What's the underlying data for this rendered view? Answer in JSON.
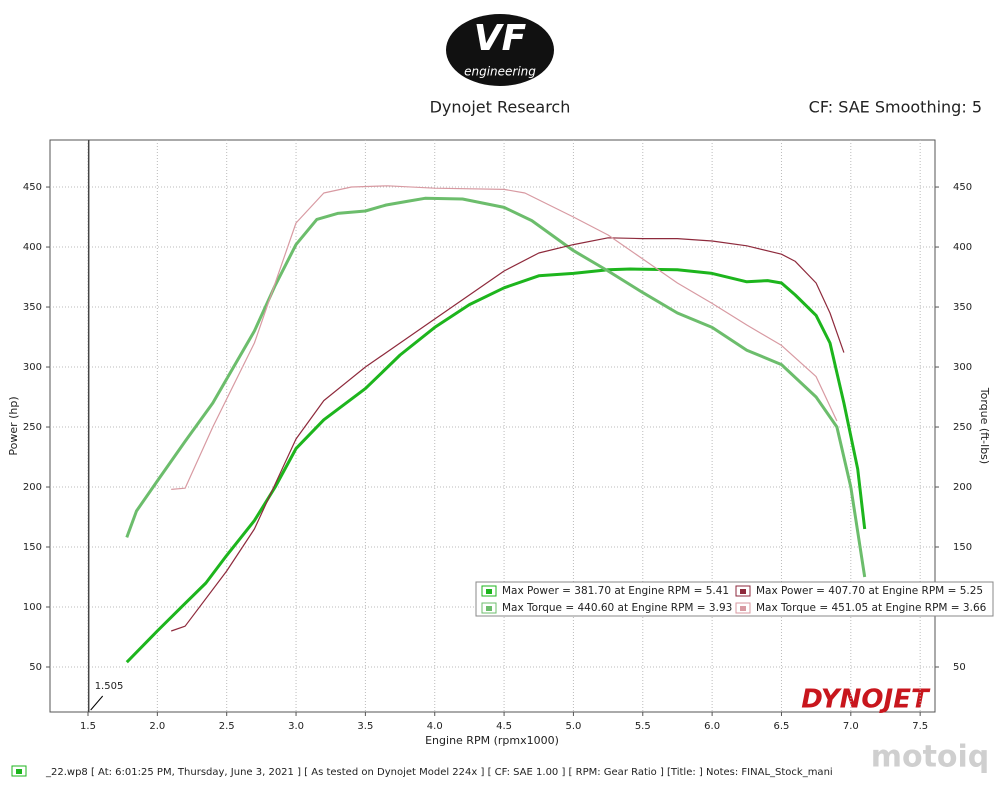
{
  "page": {
    "logo": "VF",
    "logo_sub": "engineering",
    "brand": "DYNOJET",
    "watermark": "motoiq",
    "footer": "_22.wp8 [ At: 6:01:25 PM, Thursday, June 3, 2021 ] [ As tested on Dynojet Model 224x ] [ CF: SAE 1.00 ] [ RPM: Gear Ratio ] [Title: ]  Notes: FINAL_Stock_mani"
  },
  "chart_data": {
    "type": "line",
    "title": "Dynojet Research",
    "subtitle": "CF: SAE Smoothing: 5",
    "x_label": "Engine RPM (rpmx1000)",
    "y_label": "Power (hp)",
    "y2_label": "Torque (ft-lbs)",
    "xlim": [
      1.226,
      7.607
    ],
    "xticks": [
      1.5,
      {
        "value": 2,
        "label": "2.0"
      },
      2.5,
      {
        "value": 3,
        "label": "3.0"
      },
      3.5,
      {
        "value": 4,
        "label": "4.0"
      },
      4.5,
      {
        "value": 5,
        "label": "5.0"
      },
      5.5,
      {
        "value": 6,
        "label": "6.0"
      },
      6.5,
      {
        "value": 7,
        "label": "7.0"
      },
      7.5
    ],
    "ylim": [
      12.5,
      489.2
    ],
    "yticks": [
      50,
      100,
      150,
      200,
      250,
      300,
      350,
      400,
      450
    ],
    "y2lim": [
      12.5,
      489.2
    ],
    "y2ticks": [
      50,
      100,
      150,
      200,
      250,
      300,
      350,
      400,
      450
    ],
    "grid": true,
    "cursor": {
      "value": 1.505,
      "label": "1.505"
    },
    "series": [
      {
        "name": "Max Power = 381.70 at Engine RPM = 5.41",
        "color": "#1db51d",
        "width": 3,
        "x": [
          1.78,
          2.0,
          2.2,
          2.35,
          2.5,
          2.7,
          2.85,
          3.0,
          3.2,
          3.5,
          3.75,
          4.0,
          4.25,
          4.5,
          4.75,
          5.0,
          5.25,
          5.41,
          5.75,
          6.0,
          6.25,
          6.4,
          6.5,
          6.6,
          6.75,
          6.85,
          6.95,
          7.05,
          7.1
        ],
        "values": [
          54,
          80,
          103,
          120,
          143,
          172,
          200,
          232,
          256,
          282,
          310,
          333,
          352,
          366,
          376,
          378,
          381,
          381.7,
          381,
          378,
          371,
          372,
          370,
          360,
          343,
          320,
          270,
          215,
          165
        ]
      },
      {
        "name": "Max Torque = 440.60 at Engine RPM = 3.93",
        "color": "#6cbd6c",
        "width": 3,
        "axis": "y2",
        "x": [
          1.78,
          1.85,
          2.0,
          2.2,
          2.4,
          2.7,
          2.85,
          3.0,
          3.15,
          3.3,
          3.5,
          3.65,
          3.8,
          3.93,
          4.2,
          4.5,
          4.7,
          5.0,
          5.25,
          5.5,
          5.75,
          6.0,
          6.25,
          6.5,
          6.75,
          6.9,
          7.0,
          7.1
        ],
        "values": [
          158,
          180,
          205,
          238,
          270,
          330,
          368,
          402,
          423,
          428,
          430,
          435,
          438,
          440.6,
          440,
          433,
          422,
          397,
          380,
          362,
          345,
          333,
          314,
          302,
          275,
          250,
          200,
          125
        ]
      },
      {
        "name": "Max Power = 407.70 at Engine RPM = 5.25",
        "color": "#8e2a3c",
        "width": 1.2,
        "x": [
          2.1,
          2.2,
          2.5,
          2.7,
          3.0,
          3.2,
          3.5,
          3.75,
          4.0,
          4.25,
          4.5,
          4.75,
          5.0,
          5.25,
          5.5,
          5.75,
          6.0,
          6.25,
          6.5,
          6.6,
          6.75,
          6.85,
          6.95
        ],
        "values": [
          80,
          84,
          130,
          165,
          240,
          272,
          300,
          320,
          340,
          360,
          380,
          395,
          402,
          407.7,
          407,
          407,
          405,
          401,
          394,
          388,
          370,
          345,
          312
        ]
      },
      {
        "name": "Max Torque = 451.05 at Engine RPM = 3.66",
        "color": "#d89aa2",
        "width": 1.2,
        "axis": "y2",
        "x": [
          2.1,
          2.2,
          2.4,
          2.7,
          2.85,
          3.0,
          3.2,
          3.4,
          3.66,
          4.0,
          4.5,
          4.65,
          5.0,
          5.25,
          5.5,
          5.75,
          6.0,
          6.25,
          6.5,
          6.75,
          6.9
        ],
        "values": [
          198,
          199,
          250,
          320,
          370,
          420,
          445,
          450,
          451.05,
          449,
          448,
          445,
          425,
          410,
          390,
          370,
          353,
          335,
          318,
          292,
          255
        ]
      }
    ]
  }
}
